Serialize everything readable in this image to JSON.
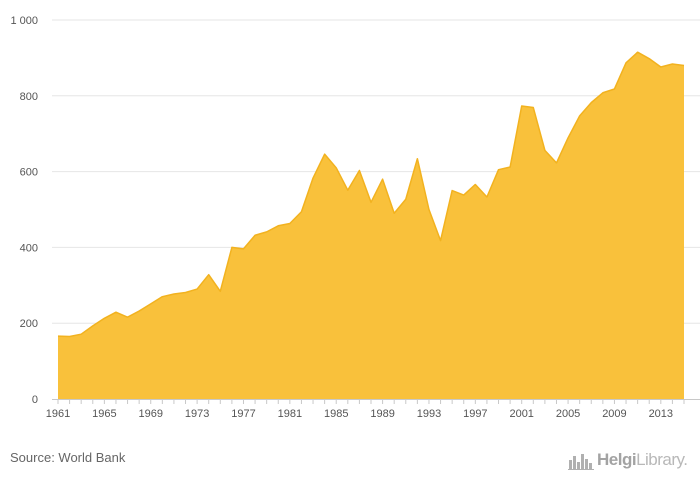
{
  "chart_data": {
    "type": "area",
    "x": [
      1961,
      1962,
      1963,
      1964,
      1965,
      1966,
      1967,
      1968,
      1969,
      1970,
      1971,
      1972,
      1973,
      1974,
      1975,
      1976,
      1977,
      1978,
      1979,
      1980,
      1981,
      1982,
      1983,
      1984,
      1985,
      1986,
      1987,
      1988,
      1989,
      1990,
      1991,
      1992,
      1993,
      1994,
      1995,
      1996,
      1997,
      1998,
      1999,
      2000,
      2001,
      2002,
      2003,
      2004,
      2005,
      2006,
      2007,
      2008,
      2009,
      2010,
      2011,
      2012,
      2013,
      2014,
      2015
    ],
    "values": [
      166,
      165,
      171,
      193,
      213,
      229,
      216,
      232,
      251,
      270,
      277,
      281,
      290,
      328,
      284,
      400,
      396,
      432,
      441,
      457,
      463,
      494,
      583,
      646,
      610,
      551,
      603,
      519,
      580,
      490,
      527,
      634,
      500,
      418,
      550,
      538,
      566,
      533,
      605,
      612,
      773,
      769,
      656,
      623,
      689,
      747,
      782,
      808,
      818,
      887,
      915,
      898,
      876,
      884,
      880
    ],
    "xtick_labels": [
      "1961",
      "1965",
      "1969",
      "1973",
      "1977",
      "1981",
      "1985",
      "1989",
      "1993",
      "1997",
      "2001",
      "2005",
      "2009",
      "2013"
    ],
    "ytick_labels": [
      "0",
      "200",
      "400",
      "600",
      "800",
      "1 000"
    ],
    "ylim": [
      0,
      1000
    ],
    "grid": true,
    "fill_color": "#F9C13B",
    "line_color": "#F2B21F"
  },
  "footer": {
    "source": "Source: World Bank",
    "brand_name": "Helgi",
    "brand_suffix": "Library."
  }
}
